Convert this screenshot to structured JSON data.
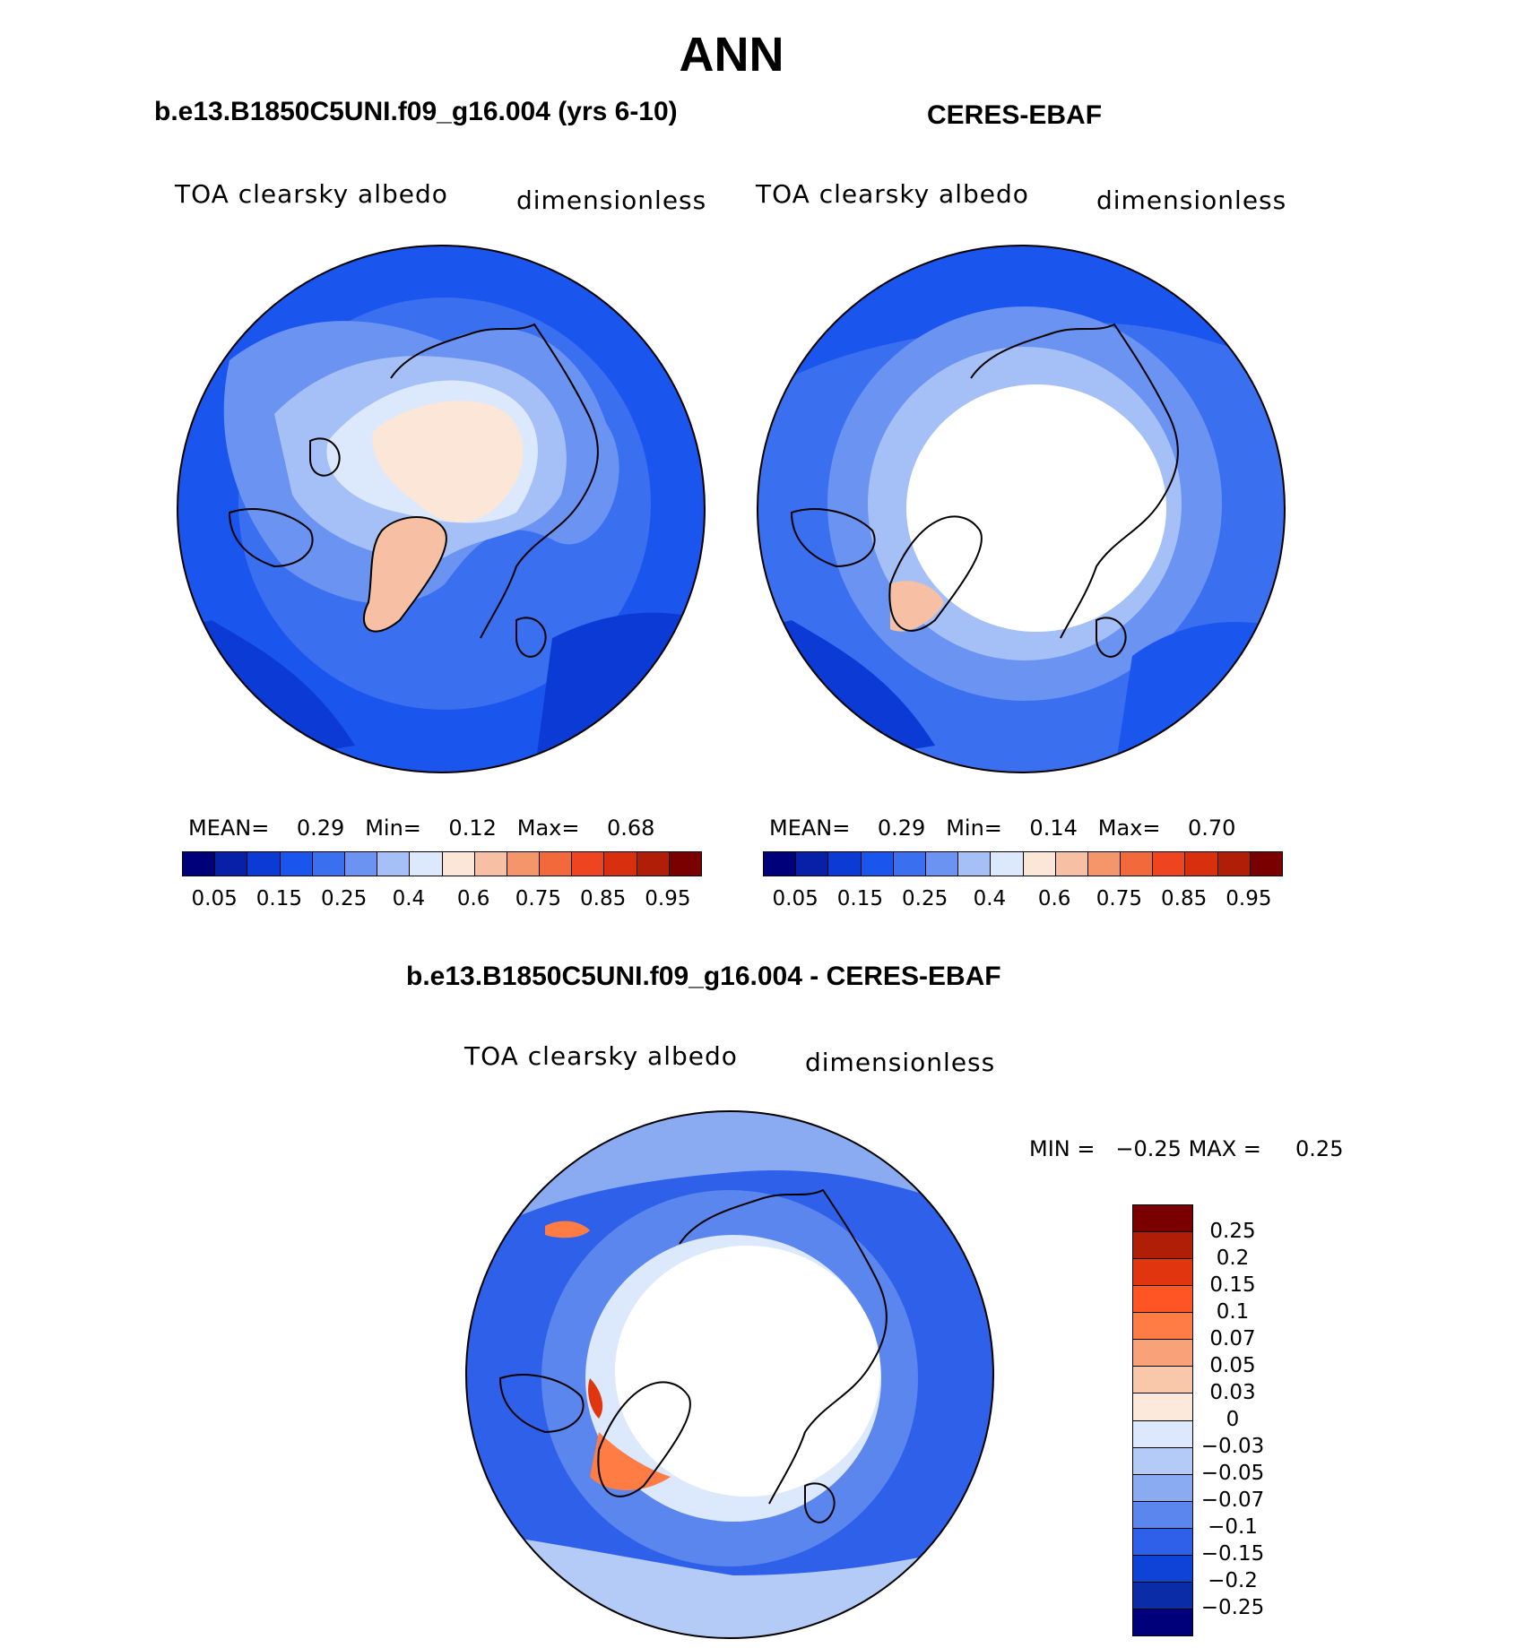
{
  "page_title": "ANN",
  "panels": [
    {
      "title": "b.e13.B1850C5UNI.f09_g16.004 (yrs 6-10)",
      "variable": "TOA clearsky albedo",
      "units": "dimensionless",
      "stats": {
        "mean_label": "MEAN=",
        "mean": "0.29",
        "min_label": "Min=",
        "min": "0.12",
        "max_label": "Max=",
        "max": "0.68"
      }
    },
    {
      "title": "CERES-EBAF",
      "variable": "TOA clearsky albedo",
      "units": "dimensionless",
      "stats": {
        "mean_label": "MEAN=",
        "mean": "0.29",
        "min_label": "Min=",
        "min": "0.14",
        "max_label": "Max=",
        "max": "0.70"
      }
    }
  ],
  "difference": {
    "title": "b.e13.B1850C5UNI.f09_g16.004 - CERES-EBAF",
    "variable": "TOA clearsky albedo",
    "units": "dimensionless",
    "min_label": "MIN =",
    "min": "−0.25",
    "max_label": "MAX =",
    "max": "0.25"
  },
  "colorbar_abs": {
    "colors": [
      "#00007a",
      "#0820a8",
      "#0b3bd4",
      "#1a55ee",
      "#3a6ff0",
      "#6a93f2",
      "#a5c0f6",
      "#dce8fb",
      "#fbe6d8",
      "#f7c0a4",
      "#f5956a",
      "#f26a3c",
      "#ef4420",
      "#d8300f",
      "#b01e08",
      "#7a0000"
    ],
    "tick_labels": [
      "0.05",
      "0.15",
      "0.25",
      "0.4",
      "0.6",
      "0.75",
      "0.85",
      "0.95"
    ]
  },
  "colorbar_diff": {
    "colors": [
      "#7a0000",
      "#b01e08",
      "#e0350f",
      "#ff5525",
      "#ff7c45",
      "#f9a27a",
      "#f9c7aa",
      "#fde8dc",
      "#dce8fb",
      "#b4cbf7",
      "#8aaaf2",
      "#5b86ee",
      "#2e60ea",
      "#0f43d8",
      "#0a2ca6",
      "#00007a"
    ],
    "tick_labels": [
      "0.25",
      "0.2",
      "0.15",
      "0.1",
      "0.07",
      "0.05",
      "0.03",
      "0",
      "−0.03",
      "−0.05",
      "−0.07",
      "−0.1",
      "−0.15",
      "−0.2",
      "−0.25"
    ]
  }
}
